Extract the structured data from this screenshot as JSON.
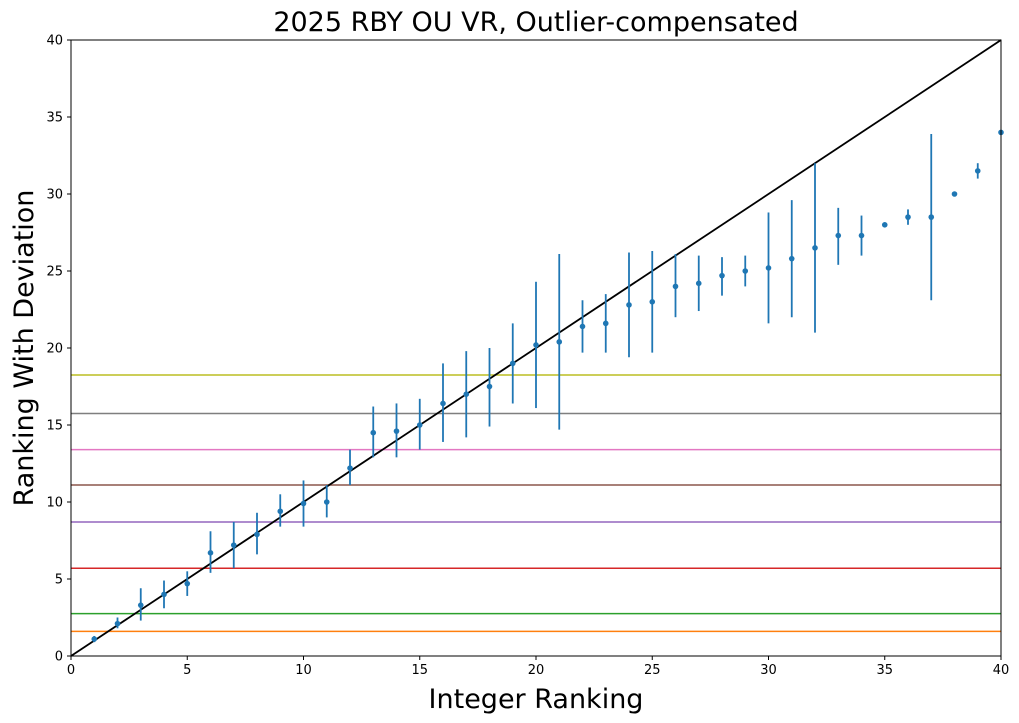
{
  "chart_data": {
    "type": "scatter",
    "title": "2025 RBY OU VR, Outlier-compensated",
    "xlabel": "Integer Ranking",
    "ylabel": "Ranking With Deviation",
    "xlim": [
      0,
      40
    ],
    "ylim": [
      0,
      40
    ],
    "xticks": [
      0,
      5,
      10,
      15,
      20,
      25,
      30,
      35,
      40
    ],
    "yticks": [
      0,
      5,
      10,
      15,
      20,
      25,
      30,
      35,
      40
    ],
    "grid": false,
    "legend": "none",
    "point_color": "#1f77b4",
    "points": [
      {
        "x": 1,
        "y": 1.1,
        "lo": 0.9,
        "hi": 1.3
      },
      {
        "x": 2,
        "y": 2.1,
        "lo": 1.8,
        "hi": 2.5
      },
      {
        "x": 3,
        "y": 3.3,
        "lo": 2.3,
        "hi": 4.4
      },
      {
        "x": 4,
        "y": 4.0,
        "lo": 3.1,
        "hi": 4.9
      },
      {
        "x": 5,
        "y": 4.7,
        "lo": 3.9,
        "hi": 5.5
      },
      {
        "x": 6,
        "y": 6.7,
        "lo": 5.4,
        "hi": 8.1
      },
      {
        "x": 7,
        "y": 7.2,
        "lo": 5.7,
        "hi": 8.7
      },
      {
        "x": 8,
        "y": 7.9,
        "lo": 6.6,
        "hi": 9.3
      },
      {
        "x": 9,
        "y": 9.4,
        "lo": 8.4,
        "hi": 10.5
      },
      {
        "x": 10,
        "y": 9.9,
        "lo": 8.4,
        "hi": 11.4
      },
      {
        "x": 11,
        "y": 10.0,
        "lo": 9.0,
        "hi": 11.1
      },
      {
        "x": 12,
        "y": 12.2,
        "lo": 11.1,
        "hi": 13.4
      },
      {
        "x": 13,
        "y": 14.5,
        "lo": 12.9,
        "hi": 16.2
      },
      {
        "x": 14,
        "y": 14.6,
        "lo": 12.9,
        "hi": 16.4
      },
      {
        "x": 15,
        "y": 15.0,
        "lo": 13.4,
        "hi": 16.7
      },
      {
        "x": 16,
        "y": 16.4,
        "lo": 13.9,
        "hi": 19.0
      },
      {
        "x": 17,
        "y": 17.0,
        "lo": 14.2,
        "hi": 19.8
      },
      {
        "x": 18,
        "y": 17.5,
        "lo": 14.9,
        "hi": 20.0
      },
      {
        "x": 19,
        "y": 19.0,
        "lo": 16.4,
        "hi": 21.6
      },
      {
        "x": 20,
        "y": 20.2,
        "lo": 16.1,
        "hi": 24.3
      },
      {
        "x": 21,
        "y": 20.4,
        "lo": 14.7,
        "hi": 26.1
      },
      {
        "x": 22,
        "y": 21.4,
        "lo": 19.7,
        "hi": 23.1
      },
      {
        "x": 23,
        "y": 21.6,
        "lo": 19.7,
        "hi": 23.5
      },
      {
        "x": 24,
        "y": 22.8,
        "lo": 19.4,
        "hi": 26.2
      },
      {
        "x": 25,
        "y": 23.0,
        "lo": 19.7,
        "hi": 26.3
      },
      {
        "x": 26,
        "y": 24.0,
        "lo": 22.0,
        "hi": 26.1
      },
      {
        "x": 27,
        "y": 24.2,
        "lo": 22.4,
        "hi": 26.0
      },
      {
        "x": 28,
        "y": 24.7,
        "lo": 23.4,
        "hi": 25.9
      },
      {
        "x": 29,
        "y": 25.0,
        "lo": 24.0,
        "hi": 26.0
      },
      {
        "x": 30,
        "y": 25.2,
        "lo": 21.6,
        "hi": 28.8
      },
      {
        "x": 31,
        "y": 25.8,
        "lo": 22.0,
        "hi": 29.6
      },
      {
        "x": 32,
        "y": 26.5,
        "lo": 21.0,
        "hi": 32.0
      },
      {
        "x": 33,
        "y": 27.3,
        "lo": 25.4,
        "hi": 29.1
      },
      {
        "x": 34,
        "y": 27.3,
        "lo": 26.0,
        "hi": 28.6
      },
      {
        "x": 35,
        "y": 28.0,
        "lo": 28.0,
        "hi": 28.0
      },
      {
        "x": 36,
        "y": 28.5,
        "lo": 28.0,
        "hi": 29.0
      },
      {
        "x": 37,
        "y": 28.5,
        "lo": 23.1,
        "hi": 33.9
      },
      {
        "x": 38,
        "y": 30.0,
        "lo": 30.0,
        "hi": 30.0
      },
      {
        "x": 39,
        "y": 31.5,
        "lo": 31.0,
        "hi": 32.0
      },
      {
        "x": 40,
        "y": 34.0,
        "lo": 34.0,
        "hi": 34.0
      }
    ],
    "reference_line": {
      "x": [
        0,
        40
      ],
      "y": [
        0,
        40
      ],
      "color": "#000000"
    },
    "hlines": [
      {
        "y": 1.6,
        "color": "#ff7f0e"
      },
      {
        "y": 2.75,
        "color": "#2ca02c"
      },
      {
        "y": 5.7,
        "color": "#d62728"
      },
      {
        "y": 8.7,
        "color": "#9467bd"
      },
      {
        "y": 11.1,
        "color": "#8c564b"
      },
      {
        "y": 13.4,
        "color": "#e377c2"
      },
      {
        "y": 15.75,
        "color": "#7f7f7f"
      },
      {
        "y": 18.25,
        "color": "#bcbd22"
      }
    ]
  }
}
